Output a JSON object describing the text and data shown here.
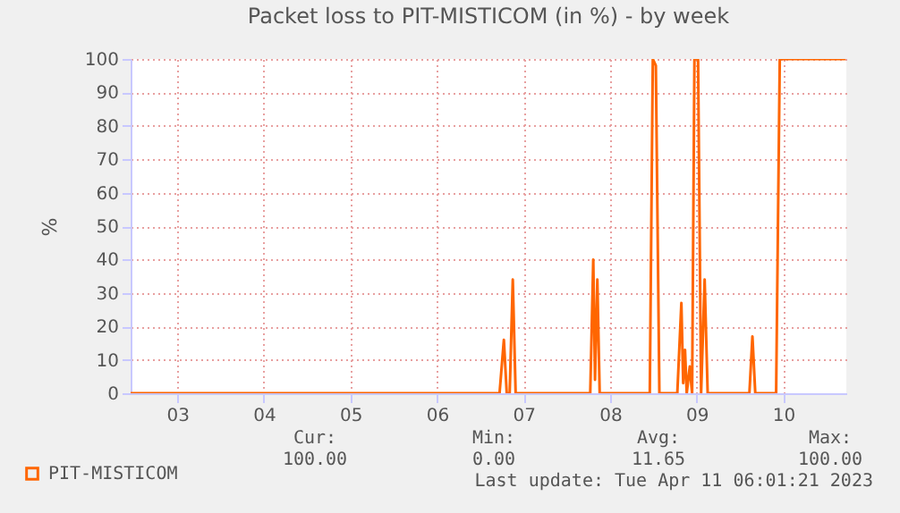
{
  "chart_data": {
    "type": "line",
    "title": "Packet loss to PIT-MISTICOM (in %) - by week",
    "ylabel": "%",
    "series": [
      {
        "name": "PIT-MISTICOM",
        "color": "#ff6600",
        "x": [
          2.96,
          7.223,
          7.273,
          7.306,
          7.34,
          7.376,
          7.409,
          8.271,
          8.306,
          8.326,
          8.353,
          8.38,
          8.959,
          8.994,
          9.029,
          9.07,
          9.277,
          9.324,
          9.345,
          9.366,
          9.386,
          9.421,
          9.448,
          9.475,
          9.517,
          9.552,
          9.593,
          9.628,
          10.11,
          10.145,
          10.178,
          10.419,
          10.461,
          11.219
        ],
        "values": [
          0,
          0,
          16,
          0,
          0,
          34,
          0,
          0,
          40,
          4,
          34,
          0,
          0,
          100,
          98,
          0,
          0,
          27,
          3,
          13,
          0,
          8,
          0,
          100,
          100,
          0,
          34,
          0,
          0,
          17,
          0,
          0,
          100,
          100
        ]
      }
    ],
    "xlim": [
      2.96,
      11.23
    ],
    "xticks": [
      {
        "value": 3.5,
        "label": "03"
      },
      {
        "value": 4.5,
        "label": "04"
      },
      {
        "value": 5.5,
        "label": "05"
      },
      {
        "value": 6.5,
        "label": "06"
      },
      {
        "value": 7.5,
        "label": "07"
      },
      {
        "value": 8.5,
        "label": "08"
      },
      {
        "value": 9.5,
        "label": "09"
      },
      {
        "value": 10.5,
        "label": "10"
      }
    ],
    "ylim": [
      0,
      100
    ],
    "yticks": [
      0,
      10,
      20,
      30,
      40,
      50,
      60,
      70,
      80,
      90,
      100
    ],
    "grid": true,
    "legend": "bottom left",
    "marker": "none",
    "line_style": "solid",
    "annotations": [
      "Cur:",
      "100.00",
      "Min:",
      "0.00",
      "Avg:",
      "11.65",
      "Max:",
      "100.00",
      "Last update: Tue Apr 11 06:01:21 2023"
    ]
  }
}
